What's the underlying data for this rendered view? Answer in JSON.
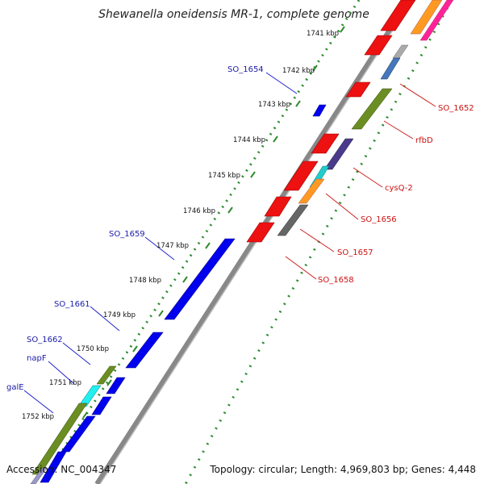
{
  "map": {
    "title": "Shewanella oneidensis MR-1, complete genome",
    "accession_text": "Accession: NC_004347",
    "summary_text": "Topology: circular; Length: 4,969,803 bp; Genes: 4,448",
    "ticks": [
      "1741 kbp",
      "1742 kbp",
      "1743 kbp",
      "1744 kbp",
      "1745 kbp",
      "1746 kbp",
      "1747 kbp",
      "1748 kbp",
      "1749 kbp",
      "1750 kbp",
      "1751 kbp",
      "1752 kbp"
    ],
    "labels_left": [
      "SO_1654",
      "SO_1659",
      "SO_1661",
      "SO_1662",
      "napF",
      "galE"
    ],
    "labels_right": [
      "SO_1652",
      "rfbD",
      "cysQ-2",
      "SO_1656",
      "SO_1657",
      "SO_1658"
    ],
    "colors": {
      "forward_gene": "#ff0000",
      "reverse_gene": "#0000ff",
      "backbone": "#888888",
      "gc_tick": "#228b22",
      "label_blue": "#1a1aa8",
      "label_red": "#cc1111"
    }
  }
}
